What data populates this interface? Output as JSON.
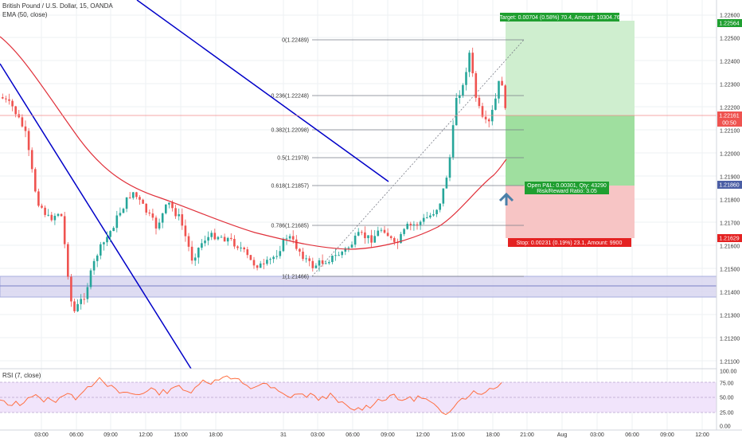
{
  "header": {
    "symbol_title": "British Pound / U.S. Dollar, 15, OANDA",
    "ema_label": "EMA (50, close)"
  },
  "rsi": {
    "label": "RSI (7, close)",
    "scale": [
      "100.00",
      "75.00",
      "50.00",
      "25.00",
      "0.00"
    ]
  },
  "price_axis": {
    "ticks": [
      "1.22600",
      "1.22500",
      "1.22400",
      "1.22300",
      "1.22200",
      "1.22100",
      "1.22000",
      "1.21900",
      "1.21800",
      "1.21700",
      "1.21600",
      "1.21500",
      "1.21400",
      "1.21300",
      "1.21200",
      "1.21100"
    ],
    "badges": {
      "target": "1.22564",
      "current": "1.22161",
      "countdown": "00:50",
      "entry": "1.21860",
      "stop": "1.21629"
    }
  },
  "time_axis": {
    "labels": [
      "03:00",
      "06:00",
      "09:00",
      "12:00",
      "15:00",
      "18:00",
      "31",
      "03:00",
      "06:00",
      "09:00",
      "12:00",
      "15:00",
      "18:00",
      "21:00",
      "Aug",
      "03:00",
      "06:00",
      "09:00",
      "12:00"
    ]
  },
  "fibonacci": {
    "levels": [
      {
        "label": "0(1.22489)"
      },
      {
        "label": "0.236(1.22248)"
      },
      {
        "label": "0.382(1.22098)"
      },
      {
        "label": "0.5(1.21978)"
      },
      {
        "label": "0.618(1.21857)"
      },
      {
        "label": "0.786(1.21685)"
      },
      {
        "label": "1(1.21466)"
      }
    ]
  },
  "position": {
    "target_label": "Target: 0.00704 (0.58%) 70.4, Amount: 10304.76",
    "open_pl_label": "Open P&L: 0.00301, Qty: 43290",
    "rr_label": "Risk/Reward Ratio: 3.05",
    "stop_label": "Stop: 0.00231 (0.19%) 23.1, Amount: 9900"
  },
  "colors": {
    "up": "#26a69a",
    "down": "#ef5350",
    "ema": "#e0303a",
    "trendline": "#0000c8",
    "target_zone": "#cfeecf",
    "profit_zone": "#9fdf9f",
    "stop_zone": "#f7c5c5",
    "support_zone": "#d9d7f0",
    "rsi_band": "#f1e4fb",
    "rsi_line": "#ff6e40"
  }
}
